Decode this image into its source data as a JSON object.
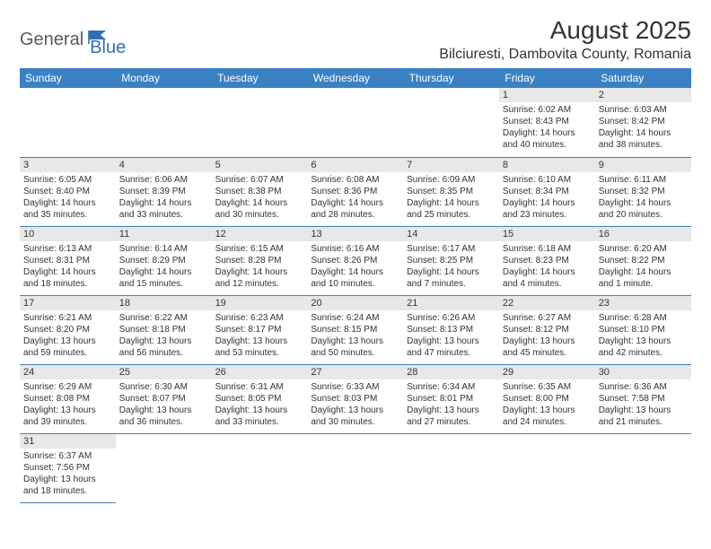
{
  "logo": {
    "general": "General",
    "blue": "Blue"
  },
  "title": "August 2025",
  "location": "Bilciuresti, Dambovita County, Romania",
  "colors": {
    "header_bg": "#3a81c4",
    "header_text": "#ffffff",
    "daynum_bg": "#e8e8e8",
    "border": "#3a81c4"
  },
  "dayNames": [
    "Sunday",
    "Monday",
    "Tuesday",
    "Wednesday",
    "Thursday",
    "Friday",
    "Saturday"
  ],
  "weeks": [
    [
      null,
      null,
      null,
      null,
      null,
      {
        "n": "1",
        "sr": "Sunrise: 6:02 AM",
        "ss": "Sunset: 8:43 PM",
        "d1": "Daylight: 14 hours",
        "d2": "and 40 minutes."
      },
      {
        "n": "2",
        "sr": "Sunrise: 6:03 AM",
        "ss": "Sunset: 8:42 PM",
        "d1": "Daylight: 14 hours",
        "d2": "and 38 minutes."
      }
    ],
    [
      {
        "n": "3",
        "sr": "Sunrise: 6:05 AM",
        "ss": "Sunset: 8:40 PM",
        "d1": "Daylight: 14 hours",
        "d2": "and 35 minutes."
      },
      {
        "n": "4",
        "sr": "Sunrise: 6:06 AM",
        "ss": "Sunset: 8:39 PM",
        "d1": "Daylight: 14 hours",
        "d2": "and 33 minutes."
      },
      {
        "n": "5",
        "sr": "Sunrise: 6:07 AM",
        "ss": "Sunset: 8:38 PM",
        "d1": "Daylight: 14 hours",
        "d2": "and 30 minutes."
      },
      {
        "n": "6",
        "sr": "Sunrise: 6:08 AM",
        "ss": "Sunset: 8:36 PM",
        "d1": "Daylight: 14 hours",
        "d2": "and 28 minutes."
      },
      {
        "n": "7",
        "sr": "Sunrise: 6:09 AM",
        "ss": "Sunset: 8:35 PM",
        "d1": "Daylight: 14 hours",
        "d2": "and 25 minutes."
      },
      {
        "n": "8",
        "sr": "Sunrise: 6:10 AM",
        "ss": "Sunset: 8:34 PM",
        "d1": "Daylight: 14 hours",
        "d2": "and 23 minutes."
      },
      {
        "n": "9",
        "sr": "Sunrise: 6:11 AM",
        "ss": "Sunset: 8:32 PM",
        "d1": "Daylight: 14 hours",
        "d2": "and 20 minutes."
      }
    ],
    [
      {
        "n": "10",
        "sr": "Sunrise: 6:13 AM",
        "ss": "Sunset: 8:31 PM",
        "d1": "Daylight: 14 hours",
        "d2": "and 18 minutes."
      },
      {
        "n": "11",
        "sr": "Sunrise: 6:14 AM",
        "ss": "Sunset: 8:29 PM",
        "d1": "Daylight: 14 hours",
        "d2": "and 15 minutes."
      },
      {
        "n": "12",
        "sr": "Sunrise: 6:15 AM",
        "ss": "Sunset: 8:28 PM",
        "d1": "Daylight: 14 hours",
        "d2": "and 12 minutes."
      },
      {
        "n": "13",
        "sr": "Sunrise: 6:16 AM",
        "ss": "Sunset: 8:26 PM",
        "d1": "Daylight: 14 hours",
        "d2": "and 10 minutes."
      },
      {
        "n": "14",
        "sr": "Sunrise: 6:17 AM",
        "ss": "Sunset: 8:25 PM",
        "d1": "Daylight: 14 hours",
        "d2": "and 7 minutes."
      },
      {
        "n": "15",
        "sr": "Sunrise: 6:18 AM",
        "ss": "Sunset: 8:23 PM",
        "d1": "Daylight: 14 hours",
        "d2": "and 4 minutes."
      },
      {
        "n": "16",
        "sr": "Sunrise: 6:20 AM",
        "ss": "Sunset: 8:22 PM",
        "d1": "Daylight: 14 hours",
        "d2": "and 1 minute."
      }
    ],
    [
      {
        "n": "17",
        "sr": "Sunrise: 6:21 AM",
        "ss": "Sunset: 8:20 PM",
        "d1": "Daylight: 13 hours",
        "d2": "and 59 minutes."
      },
      {
        "n": "18",
        "sr": "Sunrise: 6:22 AM",
        "ss": "Sunset: 8:18 PM",
        "d1": "Daylight: 13 hours",
        "d2": "and 56 minutes."
      },
      {
        "n": "19",
        "sr": "Sunrise: 6:23 AM",
        "ss": "Sunset: 8:17 PM",
        "d1": "Daylight: 13 hours",
        "d2": "and 53 minutes."
      },
      {
        "n": "20",
        "sr": "Sunrise: 6:24 AM",
        "ss": "Sunset: 8:15 PM",
        "d1": "Daylight: 13 hours",
        "d2": "and 50 minutes."
      },
      {
        "n": "21",
        "sr": "Sunrise: 6:26 AM",
        "ss": "Sunset: 8:13 PM",
        "d1": "Daylight: 13 hours",
        "d2": "and 47 minutes."
      },
      {
        "n": "22",
        "sr": "Sunrise: 6:27 AM",
        "ss": "Sunset: 8:12 PM",
        "d1": "Daylight: 13 hours",
        "d2": "and 45 minutes."
      },
      {
        "n": "23",
        "sr": "Sunrise: 6:28 AM",
        "ss": "Sunset: 8:10 PM",
        "d1": "Daylight: 13 hours",
        "d2": "and 42 minutes."
      }
    ],
    [
      {
        "n": "24",
        "sr": "Sunrise: 6:29 AM",
        "ss": "Sunset: 8:08 PM",
        "d1": "Daylight: 13 hours",
        "d2": "and 39 minutes."
      },
      {
        "n": "25",
        "sr": "Sunrise: 6:30 AM",
        "ss": "Sunset: 8:07 PM",
        "d1": "Daylight: 13 hours",
        "d2": "and 36 minutes."
      },
      {
        "n": "26",
        "sr": "Sunrise: 6:31 AM",
        "ss": "Sunset: 8:05 PM",
        "d1": "Daylight: 13 hours",
        "d2": "and 33 minutes."
      },
      {
        "n": "27",
        "sr": "Sunrise: 6:33 AM",
        "ss": "Sunset: 8:03 PM",
        "d1": "Daylight: 13 hours",
        "d2": "and 30 minutes."
      },
      {
        "n": "28",
        "sr": "Sunrise: 6:34 AM",
        "ss": "Sunset: 8:01 PM",
        "d1": "Daylight: 13 hours",
        "d2": "and 27 minutes."
      },
      {
        "n": "29",
        "sr": "Sunrise: 6:35 AM",
        "ss": "Sunset: 8:00 PM",
        "d1": "Daylight: 13 hours",
        "d2": "and 24 minutes."
      },
      {
        "n": "30",
        "sr": "Sunrise: 6:36 AM",
        "ss": "Sunset: 7:58 PM",
        "d1": "Daylight: 13 hours",
        "d2": "and 21 minutes."
      }
    ],
    [
      {
        "n": "31",
        "sr": "Sunrise: 6:37 AM",
        "ss": "Sunset: 7:56 PM",
        "d1": "Daylight: 13 hours",
        "d2": "and 18 minutes."
      },
      null,
      null,
      null,
      null,
      null,
      null
    ]
  ]
}
